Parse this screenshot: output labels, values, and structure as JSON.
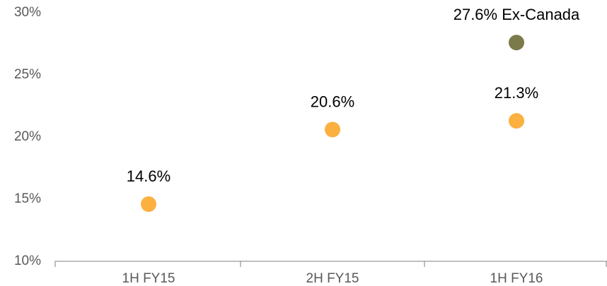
{
  "chart_data": {
    "type": "dot",
    "categories": [
      "1H FY15",
      "2H FY15",
      "1H FY16"
    ],
    "series": [
      {
        "color": "#fbb040",
        "values": [
          14.6,
          20.6,
          21.3
        ],
        "value_labels": [
          "14.6%",
          "20.6%",
          "21.3%"
        ]
      },
      {
        "color": "#7a7a4a",
        "values": [
          null,
          null,
          27.6
        ],
        "value_labels": [
          null,
          null,
          "27.6% Ex-Canada"
        ]
      }
    ],
    "ylim": [
      10,
      30
    ],
    "yticks": [
      {
        "value": 10,
        "label": "10%"
      },
      {
        "value": 15,
        "label": "15%"
      },
      {
        "value": 20,
        "label": "20%"
      },
      {
        "value": 25,
        "label": "25%"
      },
      {
        "value": 30,
        "label": "30%"
      }
    ],
    "grid": false
  }
}
